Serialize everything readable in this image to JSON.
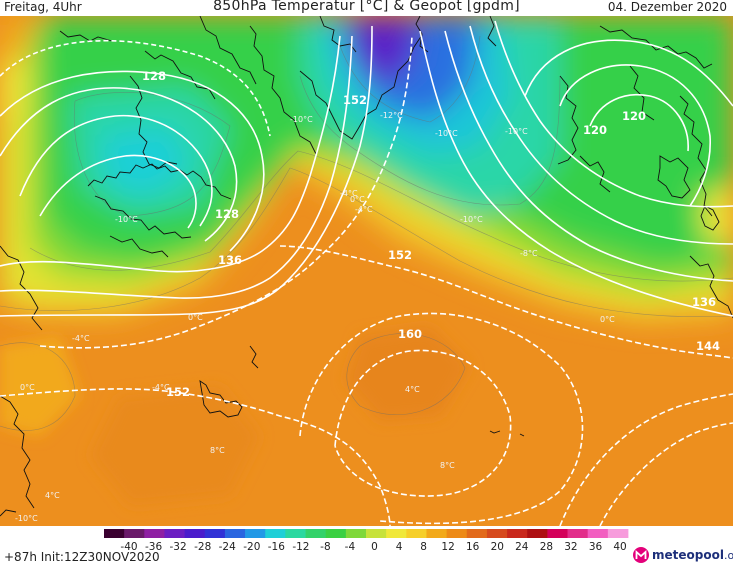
{
  "header": {
    "left": "Freitag, 4Uhr",
    "title": "850hPa Temperatur [°C] & Geopot [gpdm]",
    "right": "04. Dezember 2020"
  },
  "footer": {
    "run_info": "+87h  Init:12Z30NOV2020",
    "logo_text": "meteopool",
    "logo_tld": ".org"
  },
  "map_data": {
    "geopotential_labels": [
      "128",
      "152",
      "120",
      "120",
      "128",
      "136",
      "152",
      "160",
      "152",
      "136",
      "144"
    ],
    "temperature_labels": [
      "-10°C",
      "-12°C",
      "-10°C",
      "-10°C",
      "-10°C",
      "-10°C",
      "-4°C",
      "-4°C",
      "0°C",
      "0°C",
      "-4°C",
      "0°C",
      "-4°C",
      "0°C",
      "4°C",
      "4°C",
      "8°C",
      "8°C",
      "-10°C",
      "-8°C"
    ]
  },
  "legend": {
    "ticks": [
      "-40",
      "-36",
      "-32",
      "-28",
      "-24",
      "-20",
      "-16",
      "-12",
      "-8",
      "-4",
      "0",
      "4",
      "8",
      "12",
      "16",
      "20",
      "24",
      "28",
      "32",
      "36",
      "40"
    ],
    "colors": [
      "#3a0030",
      "#6a1a6a",
      "#8e1fa3",
      "#6b1ec2",
      "#4a1ccc",
      "#3132d6",
      "#2a66e0",
      "#2299e6",
      "#1fcfd7",
      "#2bd8a0",
      "#33d26a",
      "#3bd043",
      "#7fd83a",
      "#c7e23b",
      "#f0e83a",
      "#f6cf2a",
      "#f2a91a",
      "#ed8a17",
      "#e26a1b",
      "#d64a1e",
      "#c9281c",
      "#ad0f12",
      "#d4005a",
      "#e22d8a",
      "#f25ec0",
      "#f79cdc"
    ]
  }
}
